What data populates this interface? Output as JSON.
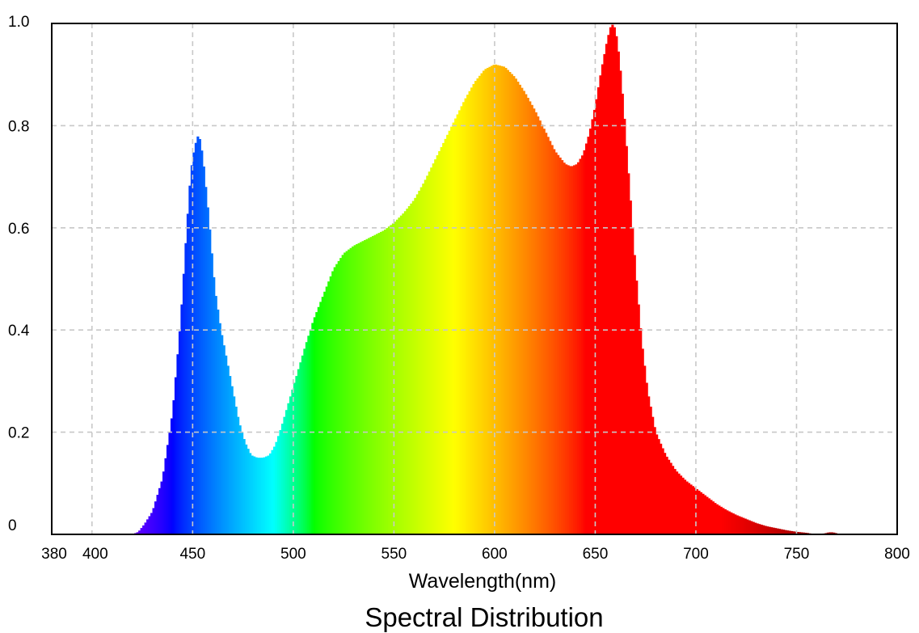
{
  "chart_data": {
    "type": "area",
    "title": "Spectral Distribution",
    "xlabel": "Wavelength(nm)",
    "ylabel": "",
    "xlim": [
      380,
      800
    ],
    "ylim": [
      0,
      1.0
    ],
    "grid": true,
    "fill": "visible-spectrum-color-gradient",
    "x_ticks": [
      {
        "value": 380,
        "label": "380"
      },
      {
        "value": 400,
        "label": "400"
      },
      {
        "value": 450,
        "label": "450"
      },
      {
        "value": 500,
        "label": "500"
      },
      {
        "value": 550,
        "label": "550"
      },
      {
        "value": 600,
        "label": "600"
      },
      {
        "value": 650,
        "label": "650"
      },
      {
        "value": 700,
        "label": "700"
      },
      {
        "value": 750,
        "label": "750"
      },
      {
        "value": 800,
        "label": "800"
      }
    ],
    "y_ticks": [
      {
        "value": 0.0,
        "label": "0"
      },
      {
        "value": 0.2,
        "label": "0.2"
      },
      {
        "value": 0.4,
        "label": "0.4"
      },
      {
        "value": 0.6,
        "label": "0.6"
      },
      {
        "value": 0.8,
        "label": "0.8"
      },
      {
        "value": 1.0,
        "label": "1.0"
      }
    ],
    "series": [
      {
        "x": [
          380,
          420,
          423,
          426,
          430,
          435,
          440,
          444,
          447,
          449,
          451,
          453,
          455,
          458,
          461,
          464,
          467,
          470,
          473,
          476,
          479,
          482,
          485,
          488,
          491,
          494,
          497,
          500,
          503,
          506,
          510,
          515,
          520,
          525,
          530,
          535,
          540,
          545,
          550,
          555,
          560,
          565,
          570,
          575,
          580,
          585,
          590,
          595,
          600,
          605,
          610,
          615,
          620,
          625,
          630,
          635,
          638,
          641,
          644,
          647,
          650,
          653,
          656,
          658,
          660,
          662,
          664,
          667,
          670,
          673,
          676,
          680,
          685,
          690,
          695,
          700,
          705,
          710,
          715,
          720,
          725,
          730,
          735,
          740,
          745,
          750,
          755,
          758,
          760,
          764,
          766,
          768,
          772,
          800
        ],
        "y": [
          0,
          0,
          0.005,
          0.02,
          0.045,
          0.11,
          0.24,
          0.42,
          0.6,
          0.71,
          0.76,
          0.785,
          0.74,
          0.62,
          0.48,
          0.4,
          0.34,
          0.28,
          0.22,
          0.18,
          0.155,
          0.15,
          0.15,
          0.155,
          0.175,
          0.21,
          0.25,
          0.29,
          0.33,
          0.37,
          0.42,
          0.47,
          0.52,
          0.55,
          0.565,
          0.575,
          0.585,
          0.595,
          0.61,
          0.63,
          0.655,
          0.69,
          0.73,
          0.77,
          0.81,
          0.85,
          0.885,
          0.91,
          0.92,
          0.915,
          0.895,
          0.865,
          0.83,
          0.79,
          0.75,
          0.725,
          0.72,
          0.725,
          0.745,
          0.785,
          0.84,
          0.91,
          0.97,
          1.0,
          0.99,
          0.93,
          0.84,
          0.68,
          0.52,
          0.38,
          0.28,
          0.2,
          0.155,
          0.125,
          0.105,
          0.09,
          0.075,
          0.06,
          0.048,
          0.038,
          0.03,
          0.022,
          0.016,
          0.012,
          0.008,
          0.005,
          0.003,
          0.001,
          0,
          0.002,
          0.004,
          0.004,
          0,
          0
        ]
      }
    ]
  }
}
